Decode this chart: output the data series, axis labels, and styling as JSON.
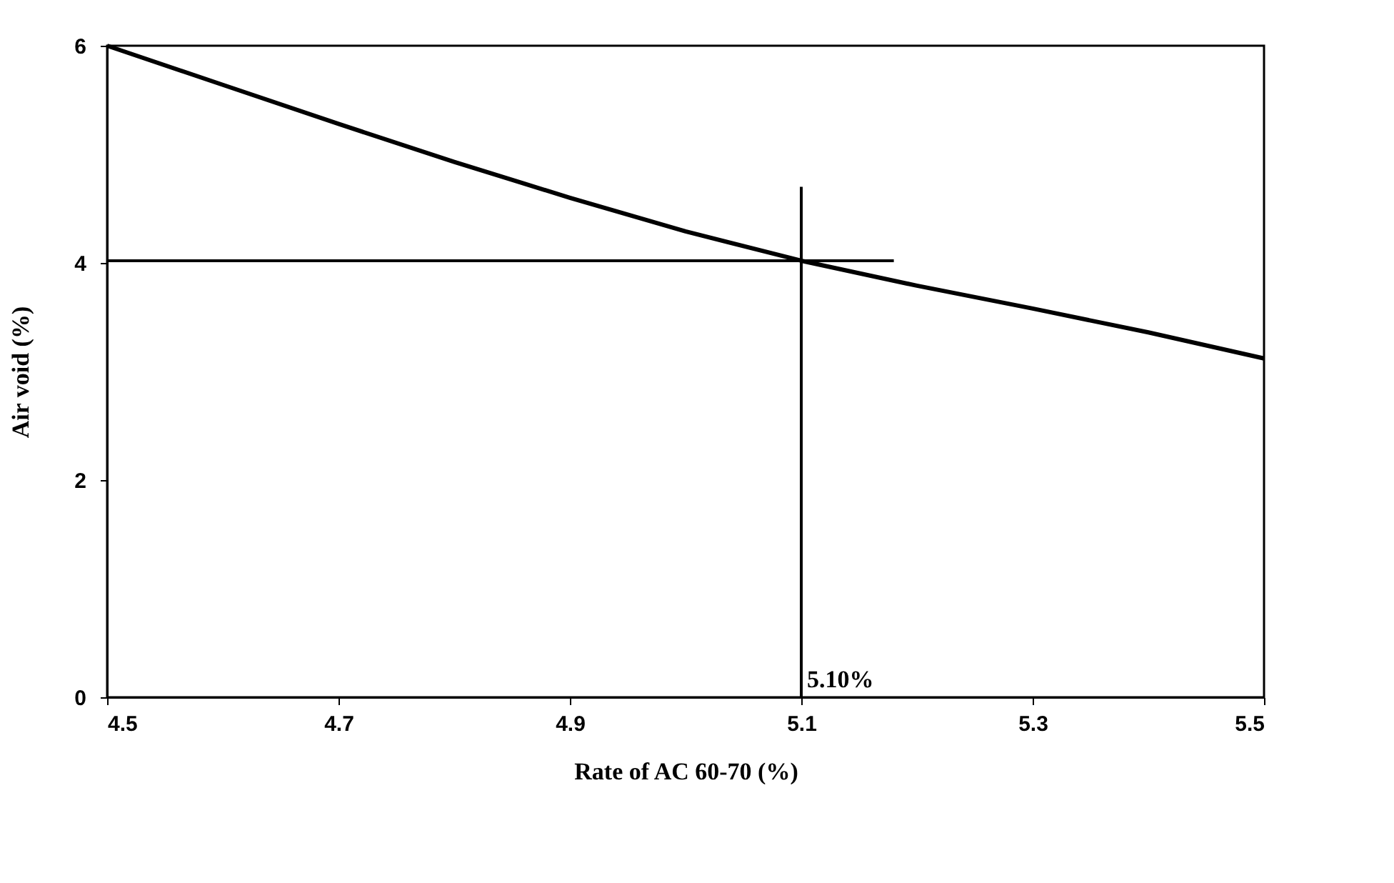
{
  "chart_data": {
    "type": "line",
    "xlabel": "Rate of AC 60-70 (%)",
    "ylabel": "Air void (%)",
    "xlim": [
      4.5,
      5.5
    ],
    "xticks": [
      4.5,
      4.7,
      4.9,
      5.1,
      5.3,
      5.5
    ],
    "ylim": [
      0,
      6
    ],
    "yticks": [
      0,
      2,
      4,
      6
    ],
    "grid": false,
    "marker": "none",
    "line_style": "solid",
    "series": [
      {
        "color": "#000000",
        "x": [
          4.5,
          4.6,
          4.7,
          4.8,
          4.9,
          5.0,
          5.1,
          5.2,
          5.3,
          5.4,
          5.5
        ],
        "values": [
          6.0,
          5.64,
          5.28,
          4.93,
          4.6,
          4.29,
          4.02,
          3.79,
          3.58,
          3.36,
          3.12
        ]
      },
      {
        "color": "#000000",
        "x": [
          4.5,
          5.18
        ],
        "values": [
          4.02,
          4.02
        ]
      },
      {
        "color": "#000000",
        "x": [
          5.1,
          5.1
        ],
        "values": [
          0,
          4.7
        ]
      }
    ],
    "annotations": [
      {
        "text": "5.10%",
        "x": 5.1,
        "y": 0
      }
    ]
  }
}
